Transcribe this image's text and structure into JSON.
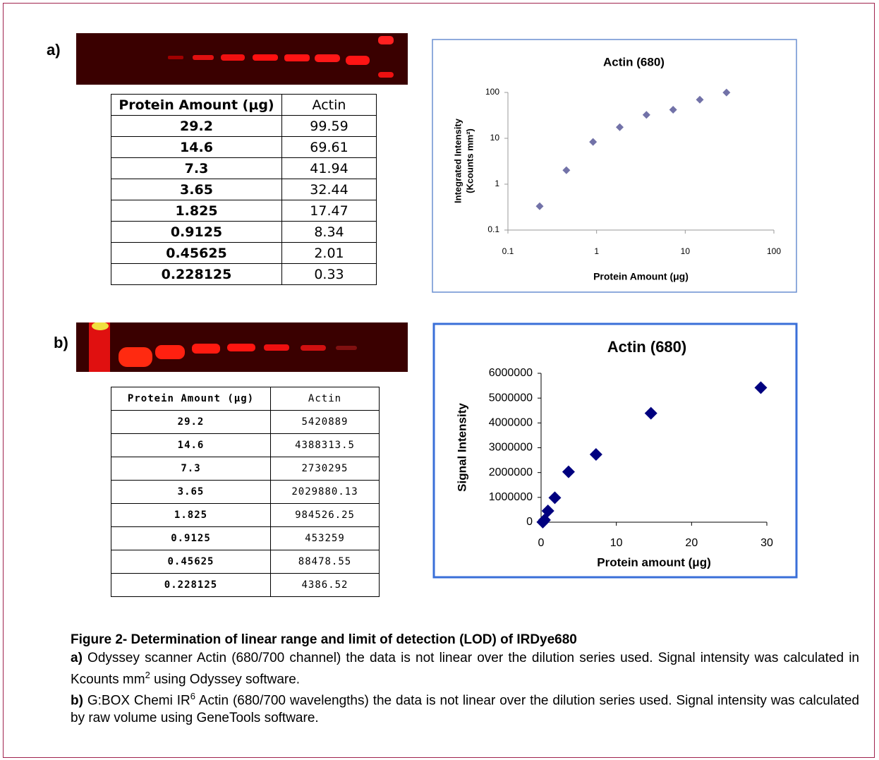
{
  "panel_labels": [
    "a)",
    "b)"
  ],
  "tables": [
    {
      "header": [
        "Protein Amount (μg)",
        "Actin"
      ],
      "rows": [
        [
          "29.2",
          "99.59"
        ],
        [
          "14.6",
          "69.61"
        ],
        [
          "7.3",
          "41.94"
        ],
        [
          "3.65",
          "32.44"
        ],
        [
          "1.825",
          "17.47"
        ],
        [
          "0.9125",
          "8.34"
        ],
        [
          "0.45625",
          "2.01"
        ],
        [
          "0.228125",
          "0.33"
        ]
      ]
    },
    {
      "header": [
        "Protein Amount (μg)",
        "Actin"
      ],
      "rows": [
        [
          "29.2",
          "5420889"
        ],
        [
          "14.6",
          "4388313.5"
        ],
        [
          "7.3",
          "2730295"
        ],
        [
          "3.65",
          "2029880.13"
        ],
        [
          "1.825",
          "984526.25"
        ],
        [
          "0.9125",
          "453259"
        ],
        [
          "0.45625",
          "88478.55"
        ],
        [
          "0.228125",
          "4386.52"
        ]
      ]
    }
  ],
  "chart_data": [
    {
      "type": "scatter",
      "title": "Actin (680)",
      "x_label": "Protein Amount (μg)",
      "y_label": [
        "Integrated Intensity",
        "(Kcounts mm²)"
      ],
      "x": [
        29.2,
        14.6,
        7.3,
        3.65,
        1.825,
        0.9125,
        0.45625,
        0.228125
      ],
      "values": [
        99.59,
        69.61,
        41.94,
        32.44,
        17.47,
        8.34,
        2.01,
        0.33
      ],
      "color": "#7272a8",
      "xscale": "log",
      "yscale": "log",
      "xlim": [
        0.1,
        100
      ],
      "xticks": [
        0.1,
        1,
        10,
        100
      ],
      "ylim": [
        0.1,
        100
      ],
      "yticks": [
        0.1,
        1,
        10,
        100
      ],
      "grid": false
    },
    {
      "type": "scatter",
      "title": "Actin (680)",
      "x_label": "Protein amount (μg)",
      "y_label": [
        "Signal Intensity"
      ],
      "x": [
        29.2,
        14.6,
        7.3,
        3.65,
        1.825,
        0.9125,
        0.45625,
        0.228125
      ],
      "values": [
        5420889,
        4388313.5,
        2730295,
        2029880.13,
        984526.25,
        453259,
        88478.55,
        4386.52
      ],
      "color": "#00007f",
      "xscale": "linear",
      "yscale": "linear",
      "xlim": [
        0,
        30
      ],
      "xticks": [
        0,
        10,
        20,
        30
      ],
      "ylim": [
        0,
        6000000
      ],
      "yticks": [
        0,
        1000000,
        2000000,
        3000000,
        4000000,
        5000000,
        6000000
      ],
      "grid": false
    }
  ],
  "caption": {
    "title": "Figure 2- Determination of linear range and limit of detection (LOD) of IRDye680",
    "paragraphs": [
      {
        "label": "a)",
        "parts": [
          " Odyssey scanner Actin (680/700 channel) the data is not linear over the dilution series used. Signal intensity was calculated in Kcounts mm",
          "2",
          " using Odyssey software."
        ]
      },
      {
        "label": "b)",
        "parts": [
          " G:BOX Chemi IR",
          "6",
          " Actin (680/700 wavelengths) the data is not linear over the dilution series used. Signal intensity was calculated by raw volume using GeneTools software."
        ]
      }
    ]
  }
}
